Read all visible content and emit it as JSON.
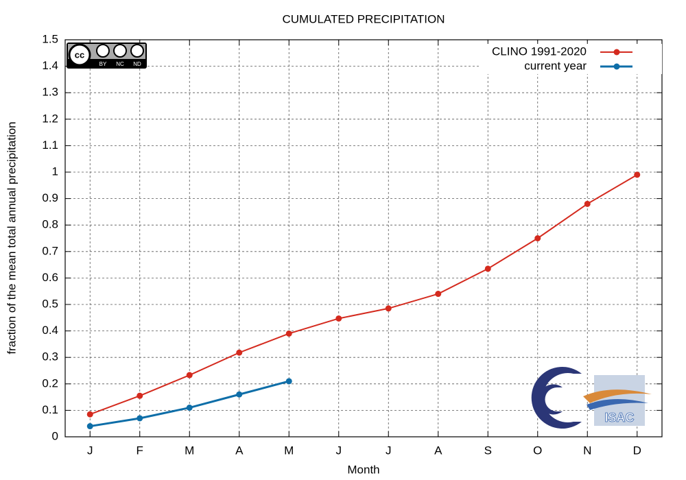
{
  "chart_data": {
    "type": "line",
    "title": "CUMULATED PRECIPITATION",
    "x_label": "Month",
    "y_label": "fraction of the mean total annual precipitation",
    "categories": [
      "J",
      "F",
      "M",
      "A",
      "M",
      "J",
      "J",
      "A",
      "S",
      "O",
      "N",
      "D"
    ],
    "series": [
      {
        "name": "CLINO 1991-2020",
        "color": "#d42a1e",
        "values": [
          0.085,
          0.155,
          0.233,
          0.318,
          0.39,
          0.447,
          0.485,
          0.54,
          0.635,
          0.75,
          0.88,
          0.99
        ]
      },
      {
        "name": "current year",
        "color": "#0e6ea8",
        "values": [
          0.04,
          0.07,
          0.11,
          0.16,
          0.21,
          null,
          null,
          null,
          null,
          null,
          null,
          null
        ]
      }
    ],
    "ylim": [
      0,
      1.5
    ],
    "yticks": [
      0,
      0.1,
      0.2,
      0.3,
      0.4,
      0.5,
      0.6,
      0.7,
      0.8,
      0.9,
      1,
      1.1,
      1.2,
      1.3,
      1.4,
      1.5
    ],
    "grid": true,
    "legend": "top-right",
    "logos": {
      "license": [
        "cc",
        "BY",
        "NC",
        "ND"
      ],
      "institute": "ISAC"
    }
  }
}
